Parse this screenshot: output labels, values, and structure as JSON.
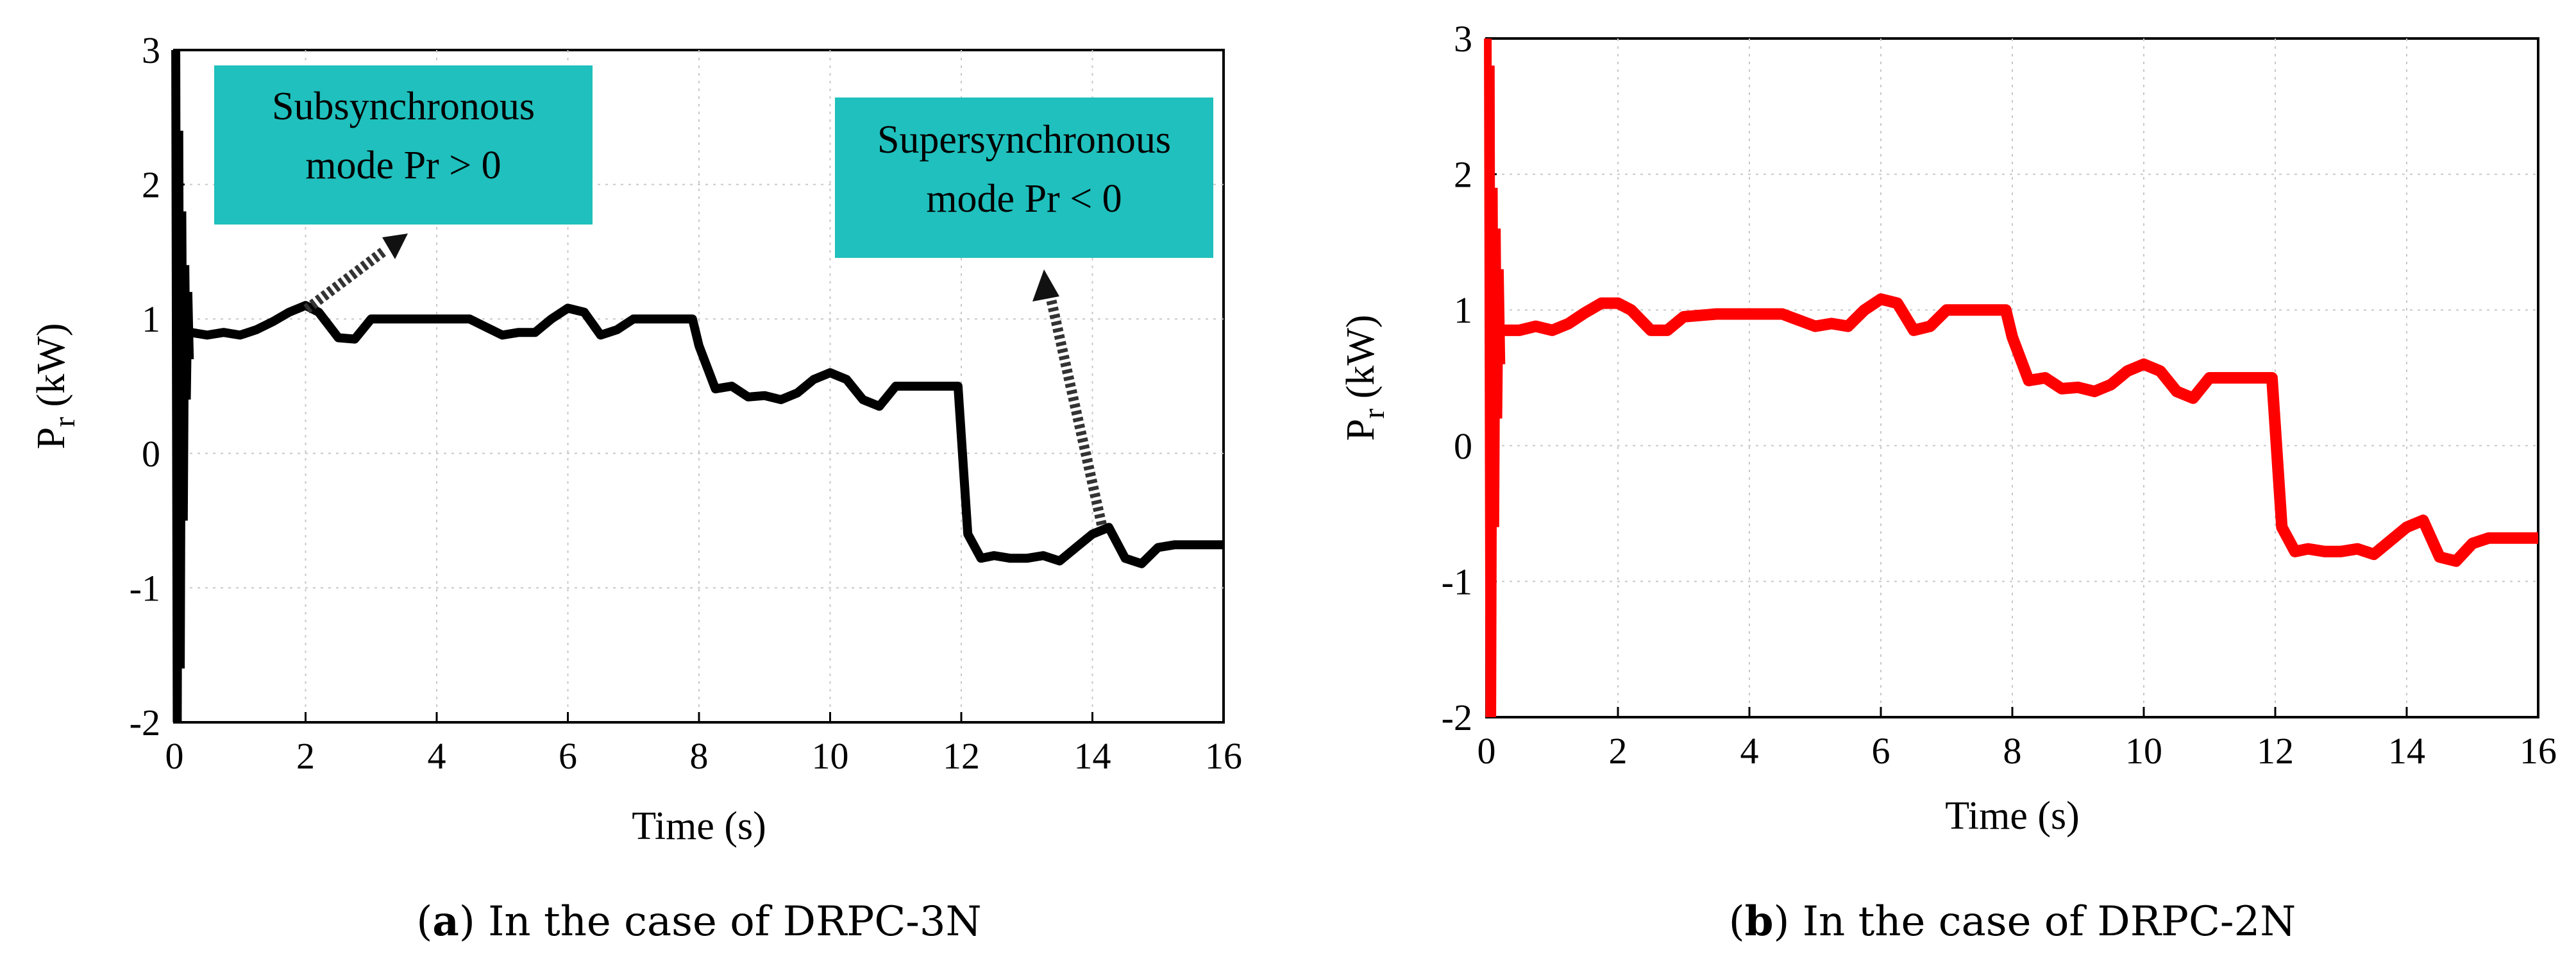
{
  "chart_data": [
    {
      "id": "a",
      "type": "line",
      "caption_letter": "a",
      "caption_open": "(",
      "caption_close": ")",
      "caption_text": " In the case of DRPC-3N",
      "xlabel": "Time (s)",
      "ylabel_main": "P",
      "ylabel_sub": "r",
      "ylabel_unit": " (kW)",
      "xlim": [
        0,
        16
      ],
      "ylim": [
        -2,
        3
      ],
      "xticks": [
        "0",
        "2",
        "4",
        "6",
        "8",
        "10",
        "12",
        "14",
        "16"
      ],
      "yticks": [
        "-2",
        "-1",
        "0",
        "1",
        "2",
        "3"
      ],
      "grid": true,
      "line_color": "#000000",
      "series": [
        {
          "name": "Pr",
          "x": [
            0.25,
            0.5,
            0.75,
            1.0,
            1.25,
            1.5,
            1.75,
            2.0,
            2.2,
            2.5,
            2.75,
            3.0,
            3.5,
            4.0,
            4.5,
            5.0,
            5.25,
            5.5,
            5.75,
            6.0,
            6.25,
            6.5,
            6.75,
            7.0,
            7.5,
            7.9,
            8.0,
            8.25,
            8.5,
            8.75,
            9.0,
            9.25,
            9.5,
            9.75,
            10.0,
            10.25,
            10.5,
            10.75,
            11.0,
            11.5,
            11.95,
            12.1,
            12.3,
            12.5,
            12.75,
            13.0,
            13.25,
            13.5,
            13.75,
            14.0,
            14.25,
            14.5,
            14.75,
            15.0,
            15.25,
            15.5,
            16.0
          ],
          "y": [
            0.9,
            0.88,
            0.9,
            0.88,
            0.92,
            0.98,
            1.05,
            1.1,
            1.05,
            0.86,
            0.85,
            1.0,
            1.0,
            1.0,
            1.0,
            0.88,
            0.9,
            0.9,
            1.0,
            1.08,
            1.05,
            0.88,
            0.92,
            1.0,
            1.0,
            1.0,
            0.8,
            0.48,
            0.5,
            0.42,
            0.43,
            0.4,
            0.45,
            0.55,
            0.6,
            0.55,
            0.4,
            0.35,
            0.5,
            0.5,
            0.5,
            -0.6,
            -0.78,
            -0.76,
            -0.78,
            -0.78,
            -0.76,
            -0.8,
            -0.7,
            -0.6,
            -0.55,
            -0.78,
            -0.82,
            -0.7,
            -0.68,
            -0.68,
            -0.68
          ]
        }
      ],
      "annotations": [
        {
          "line1": "Subsynchronous",
          "line2": "mode Pr > 0",
          "color": "#1fc0bd"
        },
        {
          "line1": "Supersynchronous",
          "line2": "mode Pr < 0",
          "color": "#1fc0bd"
        }
      ]
    },
    {
      "id": "b",
      "type": "line",
      "caption_letter": "b",
      "caption_open": "(",
      "caption_close": ")",
      "caption_text": " In the case of DRPC-2N",
      "xlabel": "Time (s)",
      "ylabel_main": "P",
      "ylabel_sub": "r",
      "ylabel_unit": " (kW)",
      "xlim": [
        0,
        16
      ],
      "ylim": [
        -2,
        3
      ],
      "xticks": [
        "0",
        "2",
        "4",
        "6",
        "8",
        "10",
        "12",
        "14",
        "16"
      ],
      "yticks": [
        "-2",
        "-1",
        "0",
        "1",
        "2",
        "3"
      ],
      "grid": true,
      "line_color": "#ff0000",
      "series": [
        {
          "name": "Pr",
          "x": [
            0.25,
            0.5,
            0.75,
            1.0,
            1.25,
            1.5,
            1.75,
            2.0,
            2.2,
            2.5,
            2.75,
            3.0,
            3.5,
            4.0,
            4.5,
            5.0,
            5.25,
            5.5,
            5.75,
            6.0,
            6.25,
            6.5,
            6.75,
            7.0,
            7.5,
            7.9,
            8.0,
            8.25,
            8.5,
            8.75,
            9.0,
            9.25,
            9.5,
            9.75,
            10.0,
            10.25,
            10.5,
            10.75,
            11.0,
            11.5,
            11.95,
            12.1,
            12.3,
            12.5,
            12.75,
            13.0,
            13.25,
            13.5,
            13.75,
            14.0,
            14.25,
            14.5,
            14.75,
            15.0,
            15.25,
            15.5,
            16.0
          ],
          "y": [
            0.85,
            0.85,
            0.88,
            0.85,
            0.9,
            0.98,
            1.05,
            1.05,
            1.0,
            0.85,
            0.85,
            0.95,
            0.97,
            0.97,
            0.97,
            0.88,
            0.9,
            0.88,
            1.0,
            1.08,
            1.05,
            0.85,
            0.88,
            1.0,
            1.0,
            1.0,
            0.8,
            0.48,
            0.5,
            0.42,
            0.43,
            0.4,
            0.45,
            0.55,
            0.6,
            0.55,
            0.4,
            0.35,
            0.5,
            0.5,
            0.5,
            -0.6,
            -0.78,
            -0.76,
            -0.78,
            -0.78,
            -0.76,
            -0.8,
            -0.7,
            -0.6,
            -0.55,
            -0.82,
            -0.85,
            -0.72,
            -0.68,
            -0.68,
            -0.68
          ]
        }
      ]
    }
  ]
}
